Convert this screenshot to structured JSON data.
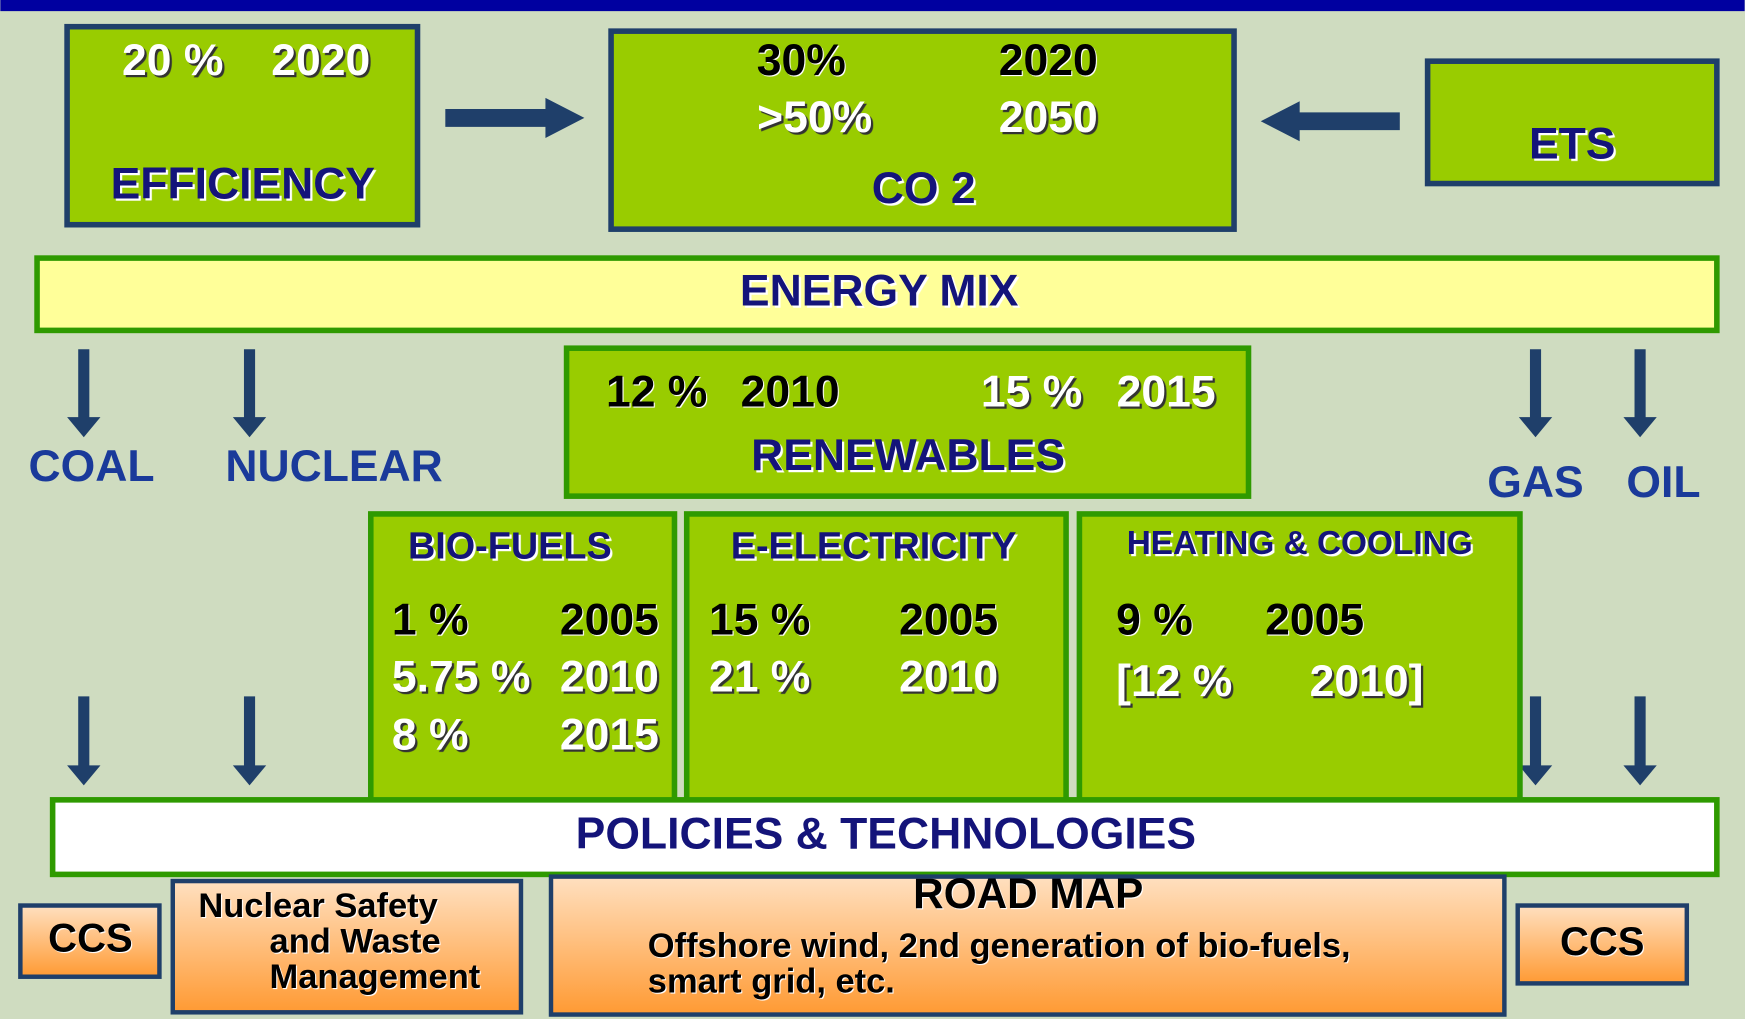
{
  "efficiency": {
    "target": "20 %",
    "year": "2020",
    "label": "EFFICIENCY"
  },
  "co2": {
    "rows": [
      [
        "30%",
        "2020"
      ],
      [
        ">50%",
        "2050"
      ]
    ],
    "label": "CO 2"
  },
  "ets": {
    "label": "ETS"
  },
  "energy_mix": {
    "label": "ENERGY MIX"
  },
  "sources": [
    "COAL",
    "NUCLEAR",
    "GAS",
    "OIL"
  ],
  "renewables": {
    "rows": [
      [
        "12 %",
        "2010"
      ],
      [
        "15 %",
        "2015"
      ]
    ],
    "label": "RENEWABLES"
  },
  "biofuels": {
    "title": "BIO-FUELS",
    "rows": [
      [
        "1 %",
        "2005"
      ],
      [
        "5.75 %",
        "2010"
      ],
      [
        "8 %",
        "2015"
      ]
    ]
  },
  "electricity": {
    "title": "E-ELECTRICITY",
    "rows": [
      [
        "15 %",
        "2005"
      ],
      [
        "21 %",
        "2010"
      ]
    ]
  },
  "heating": {
    "title": "HEATING & COOLING",
    "rows": [
      [
        "9 %",
        "2005"
      ],
      [
        "[12 %",
        "2010]"
      ]
    ]
  },
  "policies": {
    "label": "POLICIES & TECHNOLOGIES"
  },
  "ccs_left": "CCS",
  "nuclear_safety": [
    "Nuclear Safety",
    "and Waste",
    "Management"
  ],
  "road_map": {
    "title": "ROAD MAP",
    "lines": [
      "Offshore wind, 2nd generation of bio-fuels,",
      "smart grid, etc."
    ]
  },
  "ccs_right": "CCS"
}
